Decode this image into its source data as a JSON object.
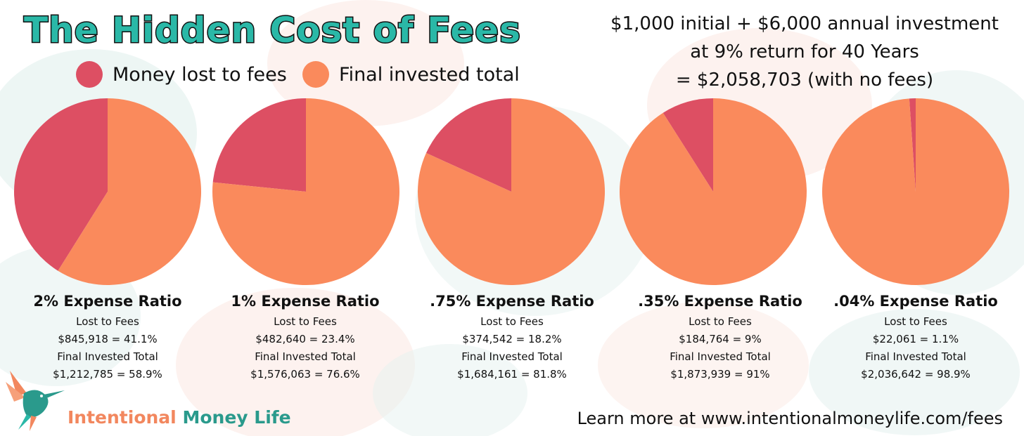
{
  "title": "The Hidden Cost of Fees",
  "legend": [
    {
      "label": "Money lost to fees",
      "color": "#dd4f63"
    },
    {
      "label": "Final invested total",
      "color": "#fa8a5c"
    }
  ],
  "headline": [
    "$1,000 initial + $6,000 annual investment",
    "at 9% return for 40 Years",
    "= $2,058,703 (with no fees)"
  ],
  "chart_data": [
    {
      "type": "pie",
      "title": "2% Expense Ratio",
      "labels": [
        "Money lost to fees",
        "Final invested total"
      ],
      "values": [
        41.1,
        58.9
      ]
    },
    {
      "type": "pie",
      "title": "1% Expense Ratio",
      "labels": [
        "Money lost to fees",
        "Final invested total"
      ],
      "values": [
        23.4,
        76.6
      ]
    },
    {
      "type": "pie",
      "title": ".75% Expense Ratio",
      "labels": [
        "Money lost to fees",
        "Final invested total"
      ],
      "values": [
        18.2,
        81.8
      ]
    },
    {
      "type": "pie",
      "title": ".35% Expense Ratio",
      "labels": [
        "Money lost to fees",
        "Final invested total"
      ],
      "values": [
        9,
        91
      ]
    },
    {
      "type": "pie",
      "title": ".04% Expense Ratio",
      "labels": [
        "Money lost to fees",
        "Final invested total"
      ],
      "values": [
        1.1,
        98.9
      ]
    }
  ],
  "panels": [
    {
      "ratio": "2% Expense Ratio",
      "lost_label": "Lost to Fees",
      "lost": "$845,918 = 41.1%",
      "final_label": "Final Invested Total",
      "final": "$1,212,785 = 58.9%"
    },
    {
      "ratio": "1% Expense Ratio",
      "lost_label": "Lost to Fees",
      "lost": "$482,640 = 23.4%",
      "final_label": "Final Invested Total",
      "final": "$1,576,063 = 76.6%"
    },
    {
      "ratio": ".75% Expense Ratio",
      "lost_label": "Lost to Fees",
      "lost": "$374,542 = 18.2%",
      "final_label": "Final Invested Total",
      "final": "$1,684,161 = 81.8%"
    },
    {
      "ratio": ".35% Expense Ratio",
      "lost_label": "Lost to Fees",
      "lost": "$184,764 = 9%",
      "final_label": "Final Invested Total",
      "final": "$1,873,939 = 91%"
    },
    {
      "ratio": ".04% Expense Ratio",
      "lost_label": "Lost to Fees",
      "lost": "$22,061 = 1.1%",
      "final_label": "Final Invested Total",
      "final": "$2,036,642 = 98.9%"
    }
  ],
  "brand": {
    "word1": "Intentional",
    "word2": "Money Life",
    "logo_icon": "hummingbird-icon"
  },
  "footer": "Learn more at www.intentionalmoneylife.com/fees",
  "colors": {
    "lost": "#dd4f63",
    "final": "#fa8a5c",
    "title": "#2ab8a7",
    "brand_orange": "#f2875e",
    "brand_teal": "#2a9a8c"
  }
}
